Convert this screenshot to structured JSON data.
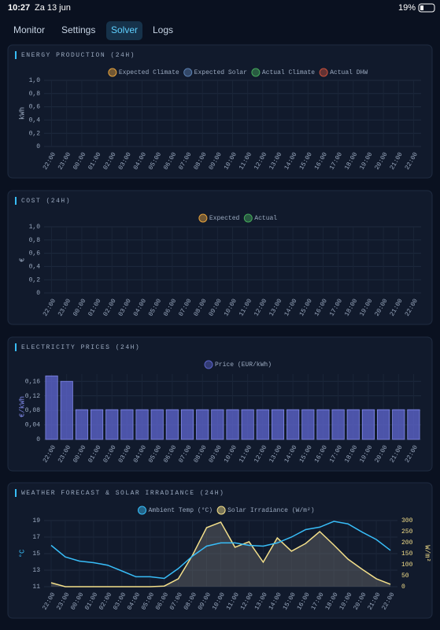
{
  "status": {
    "time": "10:27",
    "date": "Za 13 jun",
    "battery": "19%"
  },
  "tabs": [
    "Monitor",
    "Settings",
    "Solver",
    "Logs"
  ],
  "chart_data": [
    {
      "type": "bar",
      "title": "ENERGY PRODUCTION (24H)",
      "ylabel": "kWh",
      "categories": [
        "22:00",
        "23:00",
        "00:00",
        "01:00",
        "02:00",
        "03:00",
        "04:00",
        "05:00",
        "06:00",
        "07:00",
        "08:00",
        "09:00",
        "10:00",
        "11:00",
        "12:00",
        "13:00",
        "14:00",
        "15:00",
        "16:00",
        "17:00",
        "18:00",
        "19:00",
        "20:00",
        "21:00",
        "22:00"
      ],
      "series": [
        {
          "name": "Expected Climate",
          "color": "#e6a23c",
          "values": [
            null,
            null,
            null,
            null,
            null,
            null,
            null,
            null,
            null,
            null,
            null,
            null,
            null,
            null,
            null,
            null,
            null,
            null,
            null,
            null,
            null,
            null,
            null,
            null,
            null
          ]
        },
        {
          "name": "Expected Solar",
          "color": "#5a7fb0",
          "values": [
            null,
            null,
            null,
            null,
            null,
            null,
            null,
            null,
            null,
            null,
            null,
            null,
            null,
            null,
            null,
            null,
            null,
            null,
            null,
            null,
            null,
            null,
            null,
            null,
            null
          ]
        },
        {
          "name": "Actual Climate",
          "color": "#45a85a",
          "values": [
            null,
            null,
            null,
            null,
            null,
            null,
            null,
            null,
            null,
            null,
            null,
            null,
            null,
            null,
            null,
            null,
            null,
            null,
            null,
            null,
            null,
            null,
            null,
            null,
            null
          ]
        },
        {
          "name": "Actual DHW",
          "color": "#c8503c",
          "values": [
            null,
            null,
            null,
            null,
            null,
            null,
            null,
            null,
            null,
            null,
            null,
            null,
            null,
            null,
            null,
            null,
            null,
            null,
            null,
            null,
            null,
            null,
            null,
            null,
            null
          ]
        }
      ],
      "ylim": [
        0,
        1
      ],
      "yticks": [
        0,
        {
          "value": 0.2,
          "label": "0,2"
        },
        {
          "value": 0.4,
          "label": "0,4"
        },
        {
          "value": 0.6,
          "label": "0,6"
        },
        {
          "value": 0.8,
          "label": "0,8"
        },
        {
          "value": 1,
          "label": "1,0"
        }
      ],
      "grid": true
    },
    {
      "type": "bar",
      "title": "COST (24H)",
      "ylabel": "€",
      "categories": [
        "22:00",
        "23:00",
        "00:00",
        "01:00",
        "02:00",
        "03:00",
        "04:00",
        "05:00",
        "06:00",
        "07:00",
        "08:00",
        "09:00",
        "10:00",
        "11:00",
        "12:00",
        "13:00",
        "14:00",
        "15:00",
        "16:00",
        "17:00",
        "18:00",
        "19:00",
        "20:00",
        "21:00",
        "22:00"
      ],
      "series": [
        {
          "name": "Expected",
          "color": "#e6a23c",
          "values": [
            null,
            null,
            null,
            null,
            null,
            null,
            null,
            null,
            null,
            null,
            null,
            null,
            null,
            null,
            null,
            null,
            null,
            null,
            null,
            null,
            null,
            null,
            null,
            null,
            null
          ]
        },
        {
          "name": "Actual",
          "color": "#45a85a",
          "values": [
            null,
            null,
            null,
            null,
            null,
            null,
            null,
            null,
            null,
            null,
            null,
            null,
            null,
            null,
            null,
            null,
            null,
            null,
            null,
            null,
            null,
            null,
            null,
            null,
            null
          ]
        }
      ],
      "ylim": [
        0,
        1
      ],
      "yticks": [
        0,
        {
          "value": 0.2,
          "label": "0,2"
        },
        {
          "value": 0.4,
          "label": "0,4"
        },
        {
          "value": 0.6,
          "label": "0,6"
        },
        {
          "value": 0.8,
          "label": "0,8"
        },
        {
          "value": 1,
          "label": "1,0"
        }
      ],
      "grid": true
    },
    {
      "type": "bar",
      "title": "ELECTRICITY PRICES (24H)",
      "ylabel": "€/kWh",
      "categories": [
        "22:00",
        "23:00",
        "00:00",
        "01:00",
        "02:00",
        "03:00",
        "04:00",
        "05:00",
        "06:00",
        "07:00",
        "08:00",
        "09:00",
        "10:00",
        "11:00",
        "12:00",
        "13:00",
        "14:00",
        "15:00",
        "16:00",
        "17:00",
        "18:00",
        "19:00",
        "20:00",
        "21:00",
        "22:00"
      ],
      "series": [
        {
          "name": "Price (EUR/kWh)",
          "color": "#5b63c9",
          "values": [
            0.175,
            0.16,
            0.082,
            0.082,
            0.082,
            0.082,
            0.082,
            0.082,
            0.082,
            0.082,
            0.082,
            0.082,
            0.082,
            0.082,
            0.082,
            0.082,
            0.082,
            0.082,
            0.082,
            0.082,
            0.082,
            0.082,
            0.082,
            0.082,
            0.082
          ]
        }
      ],
      "ylim": [
        0,
        0.18
      ],
      "yticks": [
        0,
        {
          "value": 0.04,
          "label": "0,04"
        },
        {
          "value": 0.08,
          "label": "0,08"
        },
        {
          "value": 0.12,
          "label": "0,12"
        },
        {
          "value": 0.16,
          "label": "0,16"
        }
      ],
      "grid": true
    },
    {
      "type": "line",
      "title": "WEATHER FORECAST & SOLAR IRRADIANCE (24H)",
      "ylabel": "°C",
      "y2label": "W/m²",
      "categories": [
        "22:00",
        "23:00",
        "00:00",
        "01:00",
        "02:00",
        "03:00",
        "04:00",
        "05:00",
        "06:00",
        "07:00",
        "08:00",
        "09:00",
        "10:00",
        "11:00",
        "12:00",
        "13:00",
        "14:00",
        "15:00",
        "16:00",
        "17:00",
        "18:00",
        "19:00",
        "20:00",
        "21:00",
        "22:00"
      ],
      "series": [
        {
          "name": "Ambient Temp (°C)",
          "color": "#38bdf8",
          "values": [
            16.0,
            14.6,
            14.1,
            13.9,
            13.6,
            12.9,
            12.2,
            12.2,
            12.0,
            13.2,
            14.7,
            15.9,
            16.3,
            16.3,
            16.0,
            15.9,
            16.3,
            17.0,
            17.9,
            18.2,
            18.9,
            18.6,
            17.6,
            16.7,
            15.4
          ]
        },
        {
          "name": "Solar Irradiance (W/m²)",
          "color": "#f3df8a",
          "axis": "y2",
          "values": [
            18,
            0,
            0,
            0,
            0,
            0,
            0,
            0,
            3,
            36,
            143,
            268,
            293,
            179,
            204,
            111,
            221,
            161,
            196,
            250,
            189,
            125,
            79,
            36,
            11
          ]
        }
      ],
      "ylim": [
        11,
        19
      ],
      "yticks": [
        11,
        13,
        15,
        17,
        19
      ],
      "y2lim": [
        0,
        300
      ],
      "y2ticks": [
        0,
        50,
        100,
        150,
        200,
        250,
        300
      ],
      "grid": true
    }
  ]
}
